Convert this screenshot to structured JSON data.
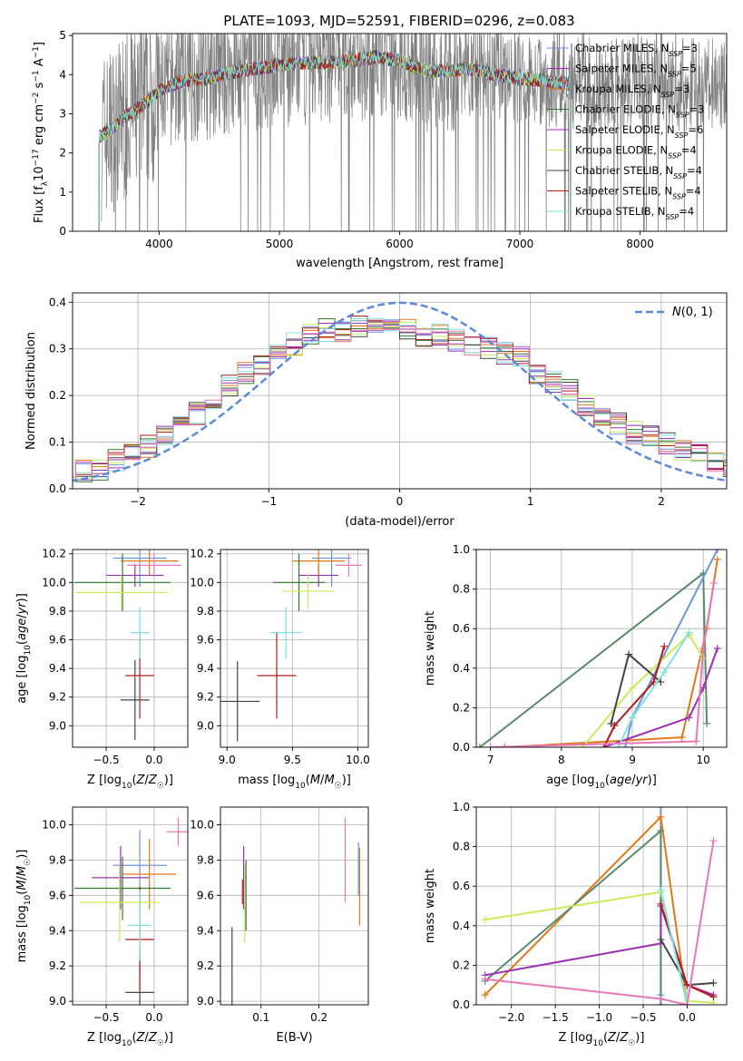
{
  "figure": {
    "title": "PLATE=1093, MJD=52591, FIBERID=0296, z=0.083"
  },
  "colors": {
    "Chabrier MILES": "#6b96dc",
    "Salpeter MILES": "#9b30b5",
    "Kroupa MILES": "#e07818",
    "Chabrier ELODIE": "#2f7a2f",
    "Salpeter ELODIE": "#9b30b5",
    "Kroupa ELODIE": "#c8ec58",
    "Chabrier STELIB": "#444444",
    "Salpeter STELIB": "#b01c1c",
    "Kroupa STELIB": "#80e0e0",
    "data": "#808080",
    "normal": "#5b8bd8",
    "extra_pink": "#e678b8",
    "extra_green": "#5a8a6a"
  },
  "chart_data": [
    {
      "id": "spectrum",
      "type": "line",
      "title": "PLATE=1093, MJD=52591, FIBERID=0296, z=0.083",
      "xlabel": "wavelength [Angstrom, rest frame]",
      "ylabel": "Flux [f_λ10^-17 erg cm^-2 s^-1 A^-1]",
      "xlim": [
        3280,
        8720
      ],
      "ylim": [
        0,
        5.05
      ],
      "xticks": [
        4000,
        5000,
        6000,
        7000,
        8000
      ],
      "yticks": [
        0,
        1,
        2,
        3,
        4,
        5
      ],
      "data_range": [
        3520,
        8720
      ],
      "models_range": [
        3500,
        7420
      ],
      "legend_position": "top-right",
      "legend": [
        "Chabrier MILES, N_SSP=3",
        "Salpeter MILES, N_SSP=5",
        "Kroupa MILES, N_SSP=3",
        "Chabrier ELODIE, N_SSP=3",
        "Salpeter ELODIE, N_SSP=6",
        "Kroupa ELODIE, N_SSP=4",
        "Chabrier STELIB, N_SSP=4",
        "Salpeter STELIB, N_SSP=4",
        "Kroupa STELIB, N_SSP=4"
      ],
      "legend_keys": [
        "Chabrier MILES",
        "Salpeter MILES",
        "Kroupa MILES",
        "Chabrier ELODIE",
        "Salpeter ELODIE",
        "Kroupa ELODIE",
        "Chabrier STELIB",
        "Salpeter STELIB",
        "Kroupa STELIB"
      ],
      "model_continuum": {
        "x": [
          3500,
          3600,
          3700,
          3800,
          3900,
          4000,
          4200,
          4400,
          4600,
          4800,
          5000,
          5200,
          5400,
          5600,
          5800,
          6000,
          6200,
          6400,
          6600,
          6800,
          7000,
          7200,
          7420
        ],
        "y": [
          2.4,
          2.6,
          2.9,
          3.1,
          3.3,
          3.6,
          3.85,
          3.9,
          4.05,
          4.15,
          4.25,
          4.3,
          4.3,
          4.35,
          4.45,
          4.35,
          4.1,
          4.1,
          4.15,
          4.0,
          3.9,
          3.85,
          3.75
        ]
      }
    },
    {
      "id": "residuals",
      "type": "step",
      "xlabel": "(data-model)/error",
      "ylabel": "Normed distribution",
      "xlim": [
        -2.5,
        2.5
      ],
      "ylim": [
        0,
        0.42
      ],
      "xticks": [
        -2,
        -1,
        0,
        1,
        2
      ],
      "yticks": [
        0.0,
        0.1,
        0.2,
        0.3,
        0.4
      ],
      "grid": true,
      "legend_position": "top-right",
      "legend_label": "N(0, 1)",
      "base_histogram": [
        0.05,
        0.04,
        0.04,
        0.06,
        0.07,
        0.09,
        0.11,
        0.14,
        0.16,
        0.19,
        0.22,
        0.25,
        0.27,
        0.29,
        0.31,
        0.33,
        0.34,
        0.34,
        0.35,
        0.34,
        0.35,
        0.34,
        0.33,
        0.33,
        0.32,
        0.31,
        0.3,
        0.29,
        0.28,
        0.25,
        0.23,
        0.21,
        0.18,
        0.16,
        0.14,
        0.12,
        0.11,
        0.1,
        0.08,
        0.07,
        0.06,
        0.05
      ]
    },
    {
      "id": "age_vs_Z",
      "type": "errorbar",
      "xlabel": "Z [log10(Z/Z☉)]",
      "ylabel": "age [log10(age/yr)]",
      "xlim": [
        -0.85,
        0.35
      ],
      "ylim": [
        8.85,
        10.23
      ],
      "xticks": [
        -0.5,
        0.0
      ],
      "yticks": [
        9.0,
        9.2,
        9.4,
        9.6,
        9.8,
        10.0,
        10.2
      ],
      "points": [
        {
          "color": "Chabrier MILES",
          "x": -0.15,
          "y": 10.17,
          "xerr": 0.28,
          "yerr": 0.2
        },
        {
          "color": "Salpeter MILES",
          "x": -0.2,
          "y": 10.05,
          "xerr": 0.3,
          "yerr": 0.08
        },
        {
          "color": "Kroupa MILES",
          "x": -0.05,
          "y": 10.15,
          "xerr": 0.3,
          "yerr": 0.1
        },
        {
          "color": "Chabrier ELODIE",
          "x": -0.33,
          "y": 10.0,
          "xerr": 0.5,
          "yerr": 0.2
        },
        {
          "color": "Kroupa ELODIE",
          "x": -0.34,
          "y": 9.93,
          "xerr": 0.48,
          "yerr": 0.12
        },
        {
          "color": "Chabrier STELIB",
          "x": -0.2,
          "y": 9.18,
          "xerr": 0.15,
          "yerr": 0.28
        },
        {
          "color": "Salpeter STELIB",
          "x": -0.15,
          "y": 9.35,
          "xerr": 0.15,
          "yerr": 0.3
        },
        {
          "color": "Kroupa STELIB",
          "x": -0.15,
          "y": 9.65,
          "xerr": 0.1,
          "yerr": 0.18
        },
        {
          "color": "extra_pink",
          "x": 0.0,
          "y": 10.12,
          "xerr": 0.28,
          "yerr": 0.08
        }
      ]
    },
    {
      "id": "age_vs_mass",
      "type": "errorbar",
      "xlabel": "mass [log10(M/M☉)]",
      "ylabel": "",
      "xlim": [
        8.95,
        10.08
      ],
      "ylim": [
        8.85,
        10.23
      ],
      "xticks": [
        9.0,
        9.5,
        10.0
      ],
      "yticks": [
        9.0,
        9.2,
        9.4,
        9.6,
        9.8,
        10.0,
        10.2
      ],
      "points": [
        {
          "color": "Chabrier MILES",
          "x": 9.8,
          "y": 10.17,
          "xerr": 0.15,
          "yerr": 0.2
        },
        {
          "color": "Salpeter MILES",
          "x": 9.7,
          "y": 10.05,
          "xerr": 0.15,
          "yerr": 0.08
        },
        {
          "color": "Kroupa MILES",
          "x": 9.7,
          "y": 10.15,
          "xerr": 0.2,
          "yerr": 0.1
        },
        {
          "color": "Chabrier ELODIE",
          "x": 9.55,
          "y": 10.0,
          "xerr": 0.2,
          "yerr": 0.2
        },
        {
          "color": "Kroupa ELODIE",
          "x": 9.62,
          "y": 9.94,
          "xerr": 0.2,
          "yerr": 0.12
        },
        {
          "color": "Chabrier STELIB",
          "x": 9.08,
          "y": 9.17,
          "xerr": 0.17,
          "yerr": 0.28
        },
        {
          "color": "Salpeter STELIB",
          "x": 9.38,
          "y": 9.35,
          "xerr": 0.15,
          "yerr": 0.3
        },
        {
          "color": "Kroupa STELIB",
          "x": 9.45,
          "y": 9.65,
          "xerr": 0.12,
          "yerr": 0.18
        },
        {
          "color": "extra_pink",
          "x": 9.93,
          "y": 10.12,
          "xerr": 0.1,
          "yerr": 0.08
        }
      ]
    },
    {
      "id": "massweight_vs_age",
      "type": "line",
      "xlabel": "age [log10(age/yr)]",
      "ylabel": "mass weight",
      "xlim": [
        6.8,
        10.33
      ],
      "ylim": [
        0,
        1.0
      ],
      "xticks": [
        7,
        8,
        9,
        10
      ],
      "yticks": [
        0.0,
        0.2,
        0.4,
        0.6,
        0.8,
        1.0
      ],
      "series": [
        {
          "color": "extra_green",
          "x": [
            6.85,
            10.0,
            10.05
          ],
          "y": [
            0.0,
            0.88,
            0.12
          ]
        },
        {
          "color": "Chabrier MILES",
          "x": [
            8.9,
            9.0,
            10.2
          ],
          "y": [
            0.0,
            0.15,
            1.0
          ]
        },
        {
          "color": "Kroupa MILES",
          "x": [
            7.2,
            9.7,
            10.05,
            10.2
          ],
          "y": [
            0.0,
            0.05,
            0.6,
            0.95
          ]
        },
        {
          "color": "Salpeter MILES",
          "x": [
            8.6,
            9.8,
            10.0,
            10.2
          ],
          "y": [
            0.0,
            0.15,
            0.3,
            0.5
          ]
        },
        {
          "color": "Kroupa ELODIE",
          "x": [
            8.3,
            9.0,
            9.8,
            10.0
          ],
          "y": [
            0.0,
            0.3,
            0.57,
            0.45
          ]
        },
        {
          "color": "Chabrier STELIB",
          "x": [
            8.7,
            8.95,
            9.4
          ],
          "y": [
            0.12,
            0.47,
            0.33
          ]
        },
        {
          "color": "Salpeter STELIB",
          "x": [
            8.6,
            8.75,
            9.3,
            9.45
          ],
          "y": [
            0.0,
            0.11,
            0.33,
            0.51
          ]
        },
        {
          "color": "Kroupa STELIB",
          "x": [
            8.8,
            9.0,
            9.45,
            9.8
          ],
          "y": [
            0.0,
            0.15,
            0.38,
            0.58
          ]
        },
        {
          "color": "extra_pink",
          "x": [
            7.0,
            9.9,
            10.0,
            10.15
          ],
          "y": [
            0.0,
            0.03,
            0.5,
            0.83
          ]
        }
      ]
    },
    {
      "id": "mass_vs_Z",
      "type": "errorbar",
      "xlabel": "Z [log10(Z/Z☉)]",
      "ylabel": "mass [log10(M/M☉)]",
      "xlim": [
        -0.85,
        0.35
      ],
      "ylim": [
        8.98,
        10.1
      ],
      "xticks": [
        -0.5,
        0.0
      ],
      "yticks": [
        9.0,
        9.2,
        9.4,
        9.6,
        9.8,
        10.0
      ],
      "points": [
        {
          "color": "Chabrier MILES",
          "x": -0.15,
          "y": 9.77,
          "xerr": 0.28,
          "yerr": 0.2
        },
        {
          "color": "Salpeter MILES",
          "x": -0.35,
          "y": 9.7,
          "xerr": 0.3,
          "yerr": 0.18
        },
        {
          "color": "Kroupa MILES",
          "x": -0.05,
          "y": 9.72,
          "xerr": 0.28,
          "yerr": 0.2
        },
        {
          "color": "Chabrier ELODIE",
          "x": -0.33,
          "y": 9.64,
          "xerr": 0.5,
          "yerr": 0.18
        },
        {
          "color": "Kroupa ELODIE",
          "x": -0.36,
          "y": 9.56,
          "xerr": 0.42,
          "yerr": 0.22
        },
        {
          "color": "Chabrier STELIB",
          "x": -0.15,
          "y": 9.05,
          "xerr": 0.15,
          "yerr": 0.25
        },
        {
          "color": "Salpeter STELIB",
          "x": -0.15,
          "y": 9.35,
          "xerr": 0.15,
          "yerr": 0.3
        },
        {
          "color": "Kroupa STELIB",
          "x": -0.15,
          "y": 9.43,
          "xerr": 0.12,
          "yerr": 0.2
        },
        {
          "color": "extra_pink",
          "x": 0.25,
          "y": 9.96,
          "xerr": 0.12,
          "yerr": 0.08
        }
      ]
    },
    {
      "id": "mass_vs_ebv",
      "type": "errorbar",
      "xlabel": "E(B-V)",
      "ylabel": "",
      "xlim": [
        0.03,
        0.285
      ],
      "ylim": [
        8.98,
        10.1
      ],
      "xticks": [
        0.1,
        0.2
      ],
      "yticks": [
        9.0,
        9.2,
        9.4,
        9.6,
        9.8,
        10.0
      ],
      "points": [
        {
          "color": "Chabrier STELIB",
          "x": 0.05,
          "y": 9.2,
          "xerr": 0.0,
          "yerr": 0.22
        },
        {
          "color": "Salpeter MILES",
          "x": 0.07,
          "y": 9.7,
          "xerr": 0.0,
          "yerr": 0.18
        },
        {
          "color": "Kroupa ELODIE",
          "x": 0.072,
          "y": 9.55,
          "xerr": 0.0,
          "yerr": 0.22
        },
        {
          "color": "Chabrier ELODIE",
          "x": 0.074,
          "y": 9.6,
          "xerr": 0.0,
          "yerr": 0.2
        },
        {
          "color": "Salpeter STELIB",
          "x": 0.068,
          "y": 9.62,
          "xerr": 0.0,
          "yerr": 0.07
        },
        {
          "color": "extra_pink",
          "x": 0.245,
          "y": 9.8,
          "xerr": 0.0,
          "yerr": 0.24
        },
        {
          "color": "Kroupa MILES",
          "x": 0.27,
          "y": 9.65,
          "xerr": 0.0,
          "yerr": 0.22
        },
        {
          "color": "Chabrier MILES",
          "x": 0.268,
          "y": 9.75,
          "xerr": 0.0,
          "yerr": 0.15
        }
      ]
    },
    {
      "id": "massweight_vs_Z",
      "type": "line",
      "xlabel": "Z [log10(Z/Z☉)]",
      "ylabel": "mass weight",
      "xlim": [
        -2.4,
        0.45
      ],
      "ylim": [
        0,
        1.0
      ],
      "xticks": [
        -2.0,
        -1.5,
        -1.0,
        -0.5,
        0.0
      ],
      "yticks": [
        0.0,
        0.2,
        0.4,
        0.6,
        0.8,
        1.0
      ],
      "series": [
        {
          "color": "Chabrier MILES",
          "x": [
            -0.3,
            -0.3,
            -0.3
          ],
          "y": [
            0.0,
            1.0,
            0.05
          ]
        },
        {
          "color": "Kroupa MILES",
          "x": [
            -2.3,
            -0.3,
            0.0
          ],
          "y": [
            0.05,
            0.95,
            0.0
          ]
        },
        {
          "color": "extra_green",
          "x": [
            -2.3,
            -0.3,
            -0.3
          ],
          "y": [
            0.12,
            0.88,
            0.0
          ]
        },
        {
          "color": "Kroupa ELODIE",
          "x": [
            -2.3,
            -0.3,
            0.0,
            0.3
          ],
          "y": [
            0.43,
            0.57,
            0.02,
            0.01
          ]
        },
        {
          "color": "Salpeter MILES",
          "x": [
            -2.3,
            -0.3,
            -0.3,
            0.0,
            0.3
          ],
          "y": [
            0.15,
            0.31,
            0.5,
            0.1,
            0.05
          ]
        },
        {
          "color": "Chabrier STELIB",
          "x": [
            -0.3,
            0.0,
            0.3
          ],
          "y": [
            0.33,
            0.1,
            0.11
          ]
        },
        {
          "color": "Salpeter STELIB",
          "x": [
            -0.3,
            0.0,
            0.3
          ],
          "y": [
            0.51,
            0.1,
            0.04
          ]
        },
        {
          "color": "Kroupa STELIB",
          "x": [
            -0.3,
            0.0
          ],
          "y": [
            0.58,
            0.0
          ]
        },
        {
          "color": "extra_pink",
          "x": [
            -2.3,
            -0.3,
            0.0,
            0.3
          ],
          "y": [
            0.13,
            0.03,
            0.0,
            0.83
          ]
        }
      ]
    }
  ]
}
